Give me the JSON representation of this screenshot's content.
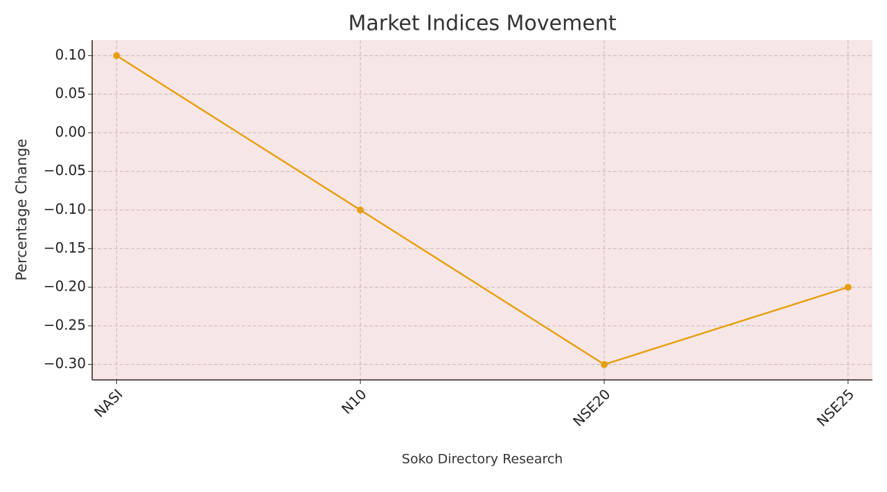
{
  "chart_data": {
    "type": "line",
    "title": "Market Indices Movement",
    "xlabel": "Soko Directory Research",
    "ylabel": "Percentage Change",
    "categories": [
      "NASI",
      "N10",
      "NSE20",
      "NSE25"
    ],
    "series": [
      {
        "name": "Percentage Change",
        "color": "#e69f12",
        "values": [
          0.1,
          -0.1,
          -0.3,
          -0.2
        ]
      }
    ],
    "ylim": [
      -0.32,
      0.12
    ],
    "yticks": [
      {
        "value": 0.1,
        "label": "0.10"
      },
      {
        "value": 0.05,
        "label": "0.05"
      },
      {
        "value": 0,
        "label": "0.00"
      },
      {
        "value": -0.05,
        "label": "−0.05"
      },
      {
        "value": -0.1,
        "label": "−0.10"
      },
      {
        "value": -0.15,
        "label": "−0.15"
      },
      {
        "value": -0.2,
        "label": "−0.20"
      },
      {
        "value": -0.25,
        "label": "−0.25"
      },
      {
        "value": -0.3,
        "label": "−0.30"
      }
    ],
    "grid": true,
    "background": "#f6e6e6"
  }
}
